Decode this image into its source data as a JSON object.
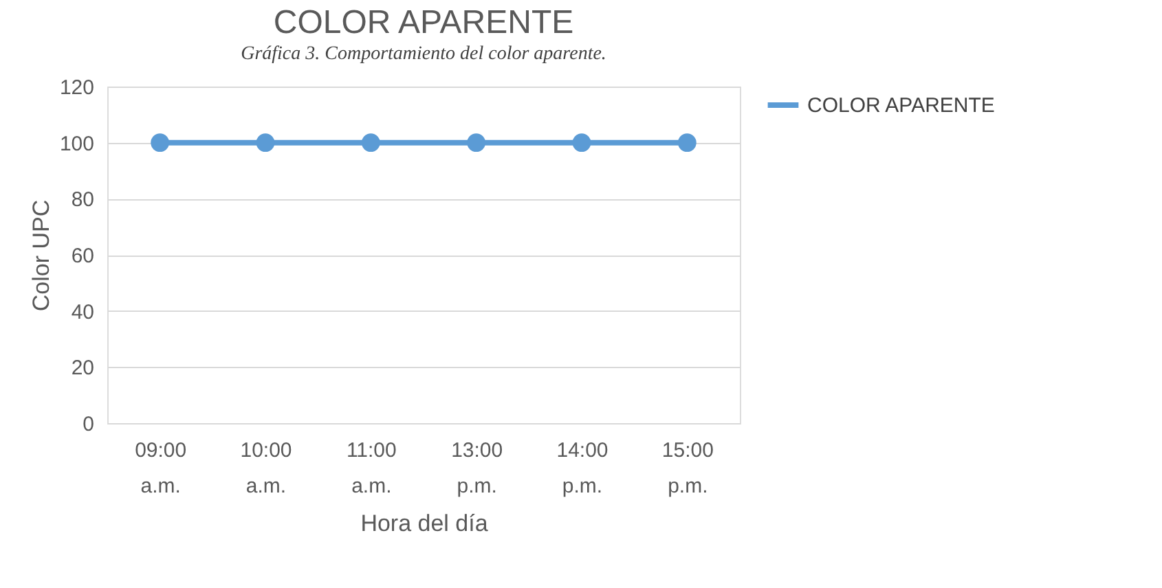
{
  "chart_data": {
    "type": "line",
    "title": "COLOR APARENTE",
    "xlabel": "Hora del día",
    "ylabel": "Color UPC",
    "annotations": [
      "Gráfica 3. Comportamiento del color aparente."
    ],
    "categories": [
      "09:00 a.m.",
      "10:00 a.m.",
      "11:00 a.m.",
      "13:00 p.m.",
      "14:00 p.m.",
      "15:00 p.m."
    ],
    "series": [
      {
        "name": "COLOR APARENTE",
        "color": "#5b9bd5",
        "values": [
          100,
          100,
          100,
          100,
          100,
          100
        ]
      }
    ],
    "ylim": [
      0,
      120
    ],
    "yticks": [
      0,
      20,
      40,
      60,
      80,
      100,
      120
    ],
    "grid": "y",
    "legend": "right",
    "marker": "circle",
    "line_style": "solid"
  }
}
